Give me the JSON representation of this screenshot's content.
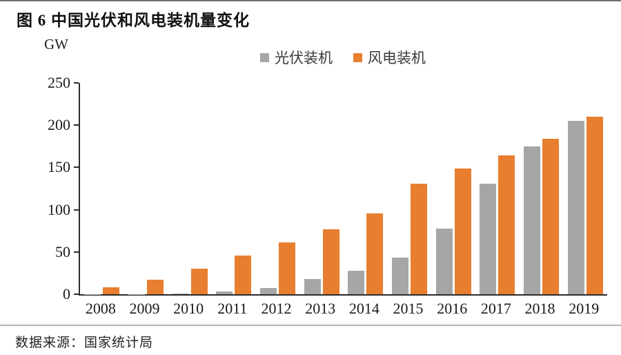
{
  "title": "图 6 中国光伏和风电装机量变化",
  "source": "数据来源：国家统计局",
  "colors": {
    "pv_gray": "#A6A6A6",
    "wind_orange": "#E87E2F",
    "axis": "#2b2b2b"
  },
  "chart_data": {
    "type": "bar",
    "title": "图 6 中国光伏和风电装机量变化",
    "unit_label": "GW",
    "xlabel": "",
    "ylabel": "GW",
    "categories": [
      "2008",
      "2009",
      "2010",
      "2011",
      "2012",
      "2013",
      "2014",
      "2015",
      "2016",
      "2017",
      "2018",
      "2019"
    ],
    "series": [
      {
        "key": "pv",
        "name": "光伏装机",
        "color": "#A6A6A6",
        "values": [
          0.1,
          0.3,
          1,
          3,
          7,
          18,
          28,
          43,
          78,
          131,
          175,
          205
        ]
      },
      {
        "key": "wind",
        "name": "风电装机",
        "color": "#E87E2F",
        "values": [
          8,
          17,
          30,
          46,
          61,
          77,
          96,
          131,
          149,
          164,
          184,
          210
        ]
      }
    ],
    "ylim": [
      0,
      250
    ],
    "yticks": [
      0,
      50,
      100,
      150,
      200,
      250
    ],
    "legend_position": "top-center",
    "grid": false,
    "source": "数据来源：国家统计局"
  }
}
